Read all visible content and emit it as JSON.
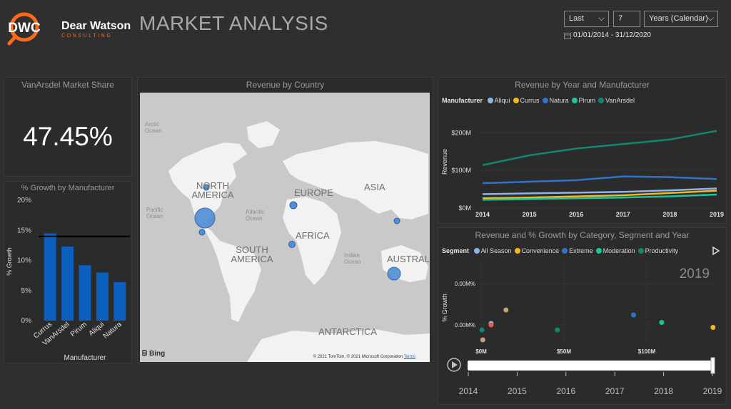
{
  "header": {
    "logo_text_main": "Dear Watson",
    "logo_text_sub": "CONSULTING",
    "logo_mark": "DWC",
    "title": "MARKET ANALYSIS"
  },
  "filters": {
    "mode": "Last",
    "count": "7",
    "unit": "Years (Calendar)",
    "date_range": "01/01/2014 - 31/12/2020",
    "calendar_icon": "calendar-icon"
  },
  "kpi": {
    "title": "VanArsdel Market Share",
    "value": "47.45%"
  },
  "growth_chart": {
    "title": "% Growth by Manufacturer",
    "chart_data": {
      "type": "bar",
      "categories": [
        "Currus",
        "VanArsdel",
        "Pirum",
        "Aliqui",
        "Natura"
      ],
      "values": [
        14.5,
        12.3,
        9.2,
        8.0,
        6.4
      ],
      "reference_line": 14.0,
      "ylim": [
        0,
        20
      ],
      "yticks": [
        "0%",
        "5%",
        "10%",
        "15%",
        "20%"
      ],
      "ytick_values": [
        0,
        5,
        10,
        15,
        20
      ],
      "xlabel": "Manufacturer",
      "ylabel": "% Growth",
      "bar_color": "#0a5fbf"
    }
  },
  "map": {
    "title": "Revenue by Country",
    "continents": [
      "NORTH AMERICA",
      "SOUTH AMERICA",
      "EUROPE",
      "AFRICA",
      "ASIA",
      "AUSTRAL",
      "ANTARCTICA"
    ],
    "oceans": [
      "Arctic Ocean",
      "Pacific Ocean",
      "Atlantic Ocean",
      "Indian Ocean"
    ],
    "attribution": "Bing",
    "copyright": "© 2021 TomTom, © 2021 Microsoft Corporation",
    "terms": "Terms"
  },
  "line_chart": {
    "title": "Revenue by Year and Manufacturer",
    "legend_title": "Manufacturer",
    "chart_data": {
      "type": "line",
      "x": [
        2014,
        2015,
        2016,
        2017,
        2018,
        2019
      ],
      "series": [
        {
          "name": "Aliqui",
          "color": "#8fb4ea",
          "values": [
            37,
            39,
            41,
            43,
            47,
            52
          ]
        },
        {
          "name": "Currus",
          "color": "#f2b81d",
          "values": [
            26,
            28,
            31,
            34,
            40,
            46
          ]
        },
        {
          "name": "Natura",
          "color": "#2f74c8",
          "values": [
            66,
            70,
            74,
            84,
            82,
            77
          ]
        },
        {
          "name": "Pirum",
          "color": "#17c7a0",
          "values": [
            22,
            24,
            26,
            28,
            31,
            36
          ]
        },
        {
          "name": "VanArsdel",
          "color": "#12876f",
          "values": [
            114,
            140,
            158,
            170,
            182,
            205
          ]
        }
      ],
      "ylabel": "Revenue",
      "yticks": [
        "$0M",
        "$100M",
        "$200M"
      ],
      "ytick_values": [
        0,
        100,
        200
      ],
      "ylim": [
        0,
        210
      ]
    }
  },
  "scatter_chart": {
    "title": "Revenue and % Growth by Category, Segment and Year",
    "legend_title": "Segment",
    "year_label": "2019",
    "chart_data": {
      "type": "scatter",
      "series": [
        {
          "name": "All Season",
          "color": "#8fb4ea"
        },
        {
          "name": "Convenience",
          "color": "#f2b81d"
        },
        {
          "name": "Extreme",
          "color": "#2f74c8"
        },
        {
          "name": "Moderation",
          "color": "#17c7a0"
        },
        {
          "name": "Productivity",
          "color": "#12876f"
        }
      ],
      "points": [
        {
          "x": 0.5,
          "y": -0.01,
          "color": "#12876f"
        },
        {
          "x": 6,
          "y": 0.003,
          "color": "#8fb4ea"
        },
        {
          "x": 6,
          "y": 0.0,
          "color": "#e0604a"
        },
        {
          "x": 1,
          "y": -0.03,
          "color": "#c8a27a"
        },
        {
          "x": 15,
          "y": 0.03,
          "color": "#c8a27a"
        },
        {
          "x": 46,
          "y": -0.01,
          "color": "#12876f"
        },
        {
          "x": 92,
          "y": 0.02,
          "color": "#2f74c8"
        },
        {
          "x": 109,
          "y": 0.005,
          "color": "#17c7a0"
        },
        {
          "x": 140,
          "y": -0.005,
          "color": "#f2b81d"
        }
      ],
      "ylabel": "% Growth",
      "yticks": [
        "0.00M%",
        "0.00M%"
      ],
      "ytick_values": [
        0.0,
        1.0
      ],
      "xticks": [
        "$0M",
        "$50M",
        "$100M"
      ],
      "xtick_values": [
        0,
        50,
        100
      ]
    },
    "play_axis": {
      "years": [
        "2014",
        "2015",
        "2016",
        "2017",
        "2018",
        "2019"
      ],
      "current": "2019",
      "play_icon": "play-icon"
    }
  }
}
